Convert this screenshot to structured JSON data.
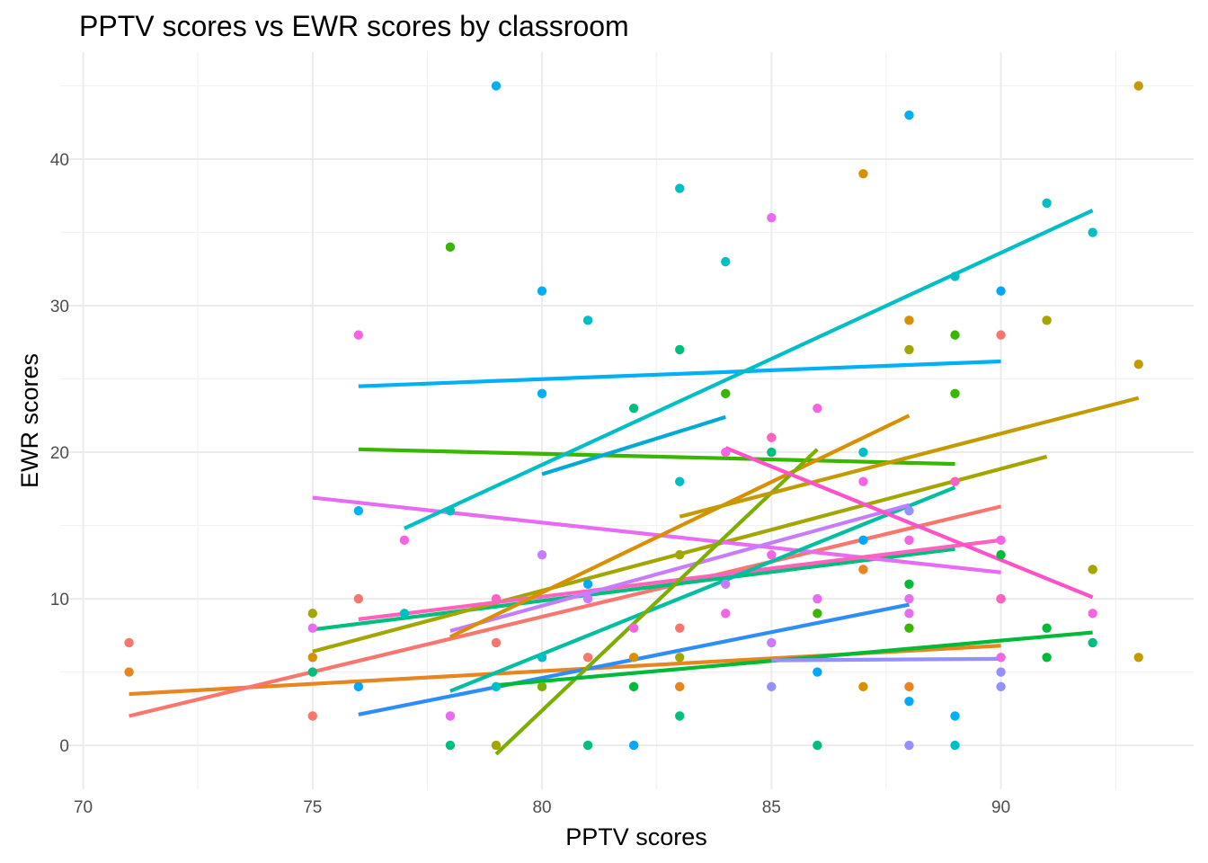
{
  "chart_data": {
    "type": "scatter",
    "title": "PPTV scores vs EWR scores by classroom",
    "xlabel": "PPTV scores",
    "ylabel": "EWR scores",
    "xlim": [
      69.5,
      94.2
    ],
    "ylim": [
      -3,
      47.3
    ],
    "x_ticks": [
      70,
      75,
      80,
      85,
      90
    ],
    "y_ticks": [
      0,
      10,
      20,
      30,
      40
    ],
    "grid": true,
    "legend": "none",
    "points": [
      {
        "x": 71,
        "y": 7,
        "color": "#F8766D"
      },
      {
        "x": 71,
        "y": 5,
        "color": "#E7851E"
      },
      {
        "x": 75,
        "y": 9,
        "color": "#A3A500"
      },
      {
        "x": 75,
        "y": 8,
        "color": "#E76BF3"
      },
      {
        "x": 75,
        "y": 6,
        "color": "#D89000"
      },
      {
        "x": 75,
        "y": 5,
        "color": "#00BF7D"
      },
      {
        "x": 75,
        "y": 2,
        "color": "#F8766D"
      },
      {
        "x": 76,
        "y": 28,
        "color": "#F564E3"
      },
      {
        "x": 76,
        "y": 16,
        "color": "#00B0F6"
      },
      {
        "x": 76,
        "y": 10,
        "color": "#F8766D"
      },
      {
        "x": 76,
        "y": 4,
        "color": "#00A9FF"
      },
      {
        "x": 77,
        "y": 14,
        "color": "#F564E3"
      },
      {
        "x": 77,
        "y": 9,
        "color": "#00BFC4"
      },
      {
        "x": 78,
        "y": 34,
        "color": "#39B600"
      },
      {
        "x": 78,
        "y": 16,
        "color": "#00BFC4"
      },
      {
        "x": 78,
        "y": 2,
        "color": "#E76BF3"
      },
      {
        "x": 78,
        "y": 0,
        "color": "#00BF7D"
      },
      {
        "x": 79,
        "y": 45,
        "color": "#00B0F6"
      },
      {
        "x": 79,
        "y": 10,
        "color": "#FF62BC"
      },
      {
        "x": 79,
        "y": 7,
        "color": "#F8766D"
      },
      {
        "x": 79,
        "y": 4,
        "color": "#00BFC4"
      },
      {
        "x": 79,
        "y": 0,
        "color": "#A3A500"
      },
      {
        "x": 80,
        "y": 31,
        "color": "#00B0F6"
      },
      {
        "x": 80,
        "y": 24,
        "color": "#00B0F6"
      },
      {
        "x": 80,
        "y": 13,
        "color": "#C77CFF"
      },
      {
        "x": 80,
        "y": 6,
        "color": "#00BFC4"
      },
      {
        "x": 80,
        "y": 4,
        "color": "#7CAE00"
      },
      {
        "x": 81,
        "y": 29,
        "color": "#00BFC4"
      },
      {
        "x": 81,
        "y": 11,
        "color": "#00A9FF"
      },
      {
        "x": 81,
        "y": 10,
        "color": "#C77CFF"
      },
      {
        "x": 81,
        "y": 6,
        "color": "#F8766D"
      },
      {
        "x": 81,
        "y": 0,
        "color": "#00BF7D"
      },
      {
        "x": 82,
        "y": 23,
        "color": "#00BF7D"
      },
      {
        "x": 82,
        "y": 8,
        "color": "#F564E3"
      },
      {
        "x": 82,
        "y": 6,
        "color": "#D89000"
      },
      {
        "x": 82,
        "y": 4,
        "color": "#00BA38"
      },
      {
        "x": 82,
        "y": 0,
        "color": "#00A9FF"
      },
      {
        "x": 83,
        "y": 38,
        "color": "#00BFC4"
      },
      {
        "x": 83,
        "y": 27,
        "color": "#00BF7D"
      },
      {
        "x": 83,
        "y": 18,
        "color": "#00BFC4"
      },
      {
        "x": 83,
        "y": 13,
        "color": "#A3A500"
      },
      {
        "x": 83,
        "y": 8,
        "color": "#F8766D"
      },
      {
        "x": 83,
        "y": 6,
        "color": "#A3A500"
      },
      {
        "x": 83,
        "y": 4,
        "color": "#E7851E"
      },
      {
        "x": 83,
        "y": 2,
        "color": "#00BF7D"
      },
      {
        "x": 84,
        "y": 33,
        "color": "#00BFC4"
      },
      {
        "x": 84,
        "y": 24,
        "color": "#39B600"
      },
      {
        "x": 84,
        "y": 20,
        "color": "#F564E3"
      },
      {
        "x": 84,
        "y": 11,
        "color": "#C77CFF"
      },
      {
        "x": 84,
        "y": 9,
        "color": "#F564E3"
      },
      {
        "x": 85,
        "y": 36,
        "color": "#E76BF3"
      },
      {
        "x": 85,
        "y": 21,
        "color": "#FF62BC"
      },
      {
        "x": 85,
        "y": 20,
        "color": "#00BF7D"
      },
      {
        "x": 85,
        "y": 13,
        "color": "#F564E3"
      },
      {
        "x": 85,
        "y": 7,
        "color": "#C77CFF"
      },
      {
        "x": 85,
        "y": 4,
        "color": "#9590FF"
      },
      {
        "x": 86,
        "y": 23,
        "color": "#F564E3"
      },
      {
        "x": 86,
        "y": 10,
        "color": "#E76BF3"
      },
      {
        "x": 86,
        "y": 9,
        "color": "#39B600"
      },
      {
        "x": 86,
        "y": 5,
        "color": "#00A9FF"
      },
      {
        "x": 86,
        "y": 0,
        "color": "#00BF7D"
      },
      {
        "x": 87,
        "y": 39,
        "color": "#D89000"
      },
      {
        "x": 87,
        "y": 20,
        "color": "#00BFC4"
      },
      {
        "x": 87,
        "y": 18,
        "color": "#F564E3"
      },
      {
        "x": 87,
        "y": 14,
        "color": "#00A9FF"
      },
      {
        "x": 87,
        "y": 12,
        "color": "#E7851E"
      },
      {
        "x": 87,
        "y": 4,
        "color": "#D89000"
      },
      {
        "x": 88,
        "y": 43,
        "color": "#00B0F6"
      },
      {
        "x": 88,
        "y": 29,
        "color": "#D89000"
      },
      {
        "x": 88,
        "y": 27,
        "color": "#A3A500"
      },
      {
        "x": 88,
        "y": 16,
        "color": "#9590FF"
      },
      {
        "x": 88,
        "y": 14,
        "color": "#F564E3"
      },
      {
        "x": 88,
        "y": 11,
        "color": "#00BA38"
      },
      {
        "x": 88,
        "y": 10,
        "color": "#E76BF3"
      },
      {
        "x": 88,
        "y": 9,
        "color": "#E76BF3"
      },
      {
        "x": 88,
        "y": 8,
        "color": "#39B600"
      },
      {
        "x": 88,
        "y": 4,
        "color": "#E7851E"
      },
      {
        "x": 88,
        "y": 3,
        "color": "#00A9FF"
      },
      {
        "x": 88,
        "y": 0,
        "color": "#9590FF"
      },
      {
        "x": 89,
        "y": 32,
        "color": "#00BFC4"
      },
      {
        "x": 89,
        "y": 28,
        "color": "#39B600"
      },
      {
        "x": 89,
        "y": 24,
        "color": "#39B600"
      },
      {
        "x": 89,
        "y": 18,
        "color": "#FF62BC"
      },
      {
        "x": 89,
        "y": 2,
        "color": "#00B0F6"
      },
      {
        "x": 89,
        "y": 0,
        "color": "#00BFC4"
      },
      {
        "x": 90,
        "y": 31,
        "color": "#00A9FF"
      },
      {
        "x": 90,
        "y": 28,
        "color": "#F8766D"
      },
      {
        "x": 90,
        "y": 14,
        "color": "#F564E3"
      },
      {
        "x": 90,
        "y": 13,
        "color": "#00BA38"
      },
      {
        "x": 90,
        "y": 10,
        "color": "#F8766D"
      },
      {
        "x": 90,
        "y": 10,
        "color": "#FF62BC"
      },
      {
        "x": 90,
        "y": 6,
        "color": "#F564E3"
      },
      {
        "x": 90,
        "y": 5,
        "color": "#9590FF"
      },
      {
        "x": 90,
        "y": 4,
        "color": "#9590FF"
      },
      {
        "x": 91,
        "y": 37,
        "color": "#00BFC4"
      },
      {
        "x": 91,
        "y": 29,
        "color": "#A3A500"
      },
      {
        "x": 91,
        "y": 8,
        "color": "#00BA38"
      },
      {
        "x": 91,
        "y": 6,
        "color": "#00BA38"
      },
      {
        "x": 92,
        "y": 35,
        "color": "#00BFC4"
      },
      {
        "x": 92,
        "y": 12,
        "color": "#A3A500"
      },
      {
        "x": 92,
        "y": 9,
        "color": "#F564E3"
      },
      {
        "x": 92,
        "y": 7,
        "color": "#00BF7D"
      },
      {
        "x": 93,
        "y": 45,
        "color": "#C49A00"
      },
      {
        "x": 93,
        "y": 26,
        "color": "#C49A00"
      },
      {
        "x": 93,
        "y": 6,
        "color": "#C49A00"
      }
    ],
    "lines": [
      {
        "x": [
          71,
          90
        ],
        "y": [
          3.5,
          6.8
        ],
        "color": "#E7851E"
      },
      {
        "x": [
          71,
          90
        ],
        "y": [
          2.0,
          16.3
        ],
        "color": "#F8766D"
      },
      {
        "x": [
          75,
          89
        ],
        "y": [
          7.9,
          13.4
        ],
        "color": "#00BF7D"
      },
      {
        "x": [
          75,
          91
        ],
        "y": [
          6.4,
          19.7
        ],
        "color": "#A3A500"
      },
      {
        "x": [
          75,
          90
        ],
        "y": [
          16.9,
          11.8
        ],
        "color": "#E76BF3"
      },
      {
        "x": [
          76,
          90
        ],
        "y": [
          24.5,
          26.2
        ],
        "color": "#00B0F6"
      },
      {
        "x": [
          76,
          89
        ],
        "y": [
          20.2,
          19.2
        ],
        "color": "#39B600"
      },
      {
        "x": [
          76,
          90
        ],
        "y": [
          8.6,
          14.0
        ],
        "color": "#FF62BC"
      },
      {
        "x": [
          76,
          88
        ],
        "y": [
          2.1,
          9.6
        ],
        "color": "#2D8CFF"
      },
      {
        "x": [
          77,
          92
        ],
        "y": [
          14.8,
          36.5
        ],
        "color": "#00BFC4"
      },
      {
        "x": [
          78,
          89
        ],
        "y": [
          3.7,
          17.6
        ],
        "color": "#00BFA0"
      },
      {
        "x": [
          78,
          88
        ],
        "y": [
          7.8,
          16.4
        ],
        "color": "#C77CFF"
      },
      {
        "x": [
          78,
          88
        ],
        "y": [
          7.4,
          22.5
        ],
        "color": "#D89000"
      },
      {
        "x": [
          79,
          86
        ],
        "y": [
          -0.6,
          20.2
        ],
        "color": "#7CAE00"
      },
      {
        "x": [
          79,
          92
        ],
        "y": [
          4.1,
          7.7
        ],
        "color": "#00BA38"
      },
      {
        "x": [
          80,
          84
        ],
        "y": [
          18.5,
          22.4
        ],
        "color": "#00A9D6"
      },
      {
        "x": [
          83,
          93
        ],
        "y": [
          15.6,
          23.7
        ],
        "color": "#C49A00"
      },
      {
        "x": [
          84,
          92
        ],
        "y": [
          20.3,
          10.1
        ],
        "color": "#FF52C8"
      },
      {
        "x": [
          85,
          90
        ],
        "y": [
          5.8,
          5.9
        ],
        "color": "#9590FF"
      }
    ]
  }
}
